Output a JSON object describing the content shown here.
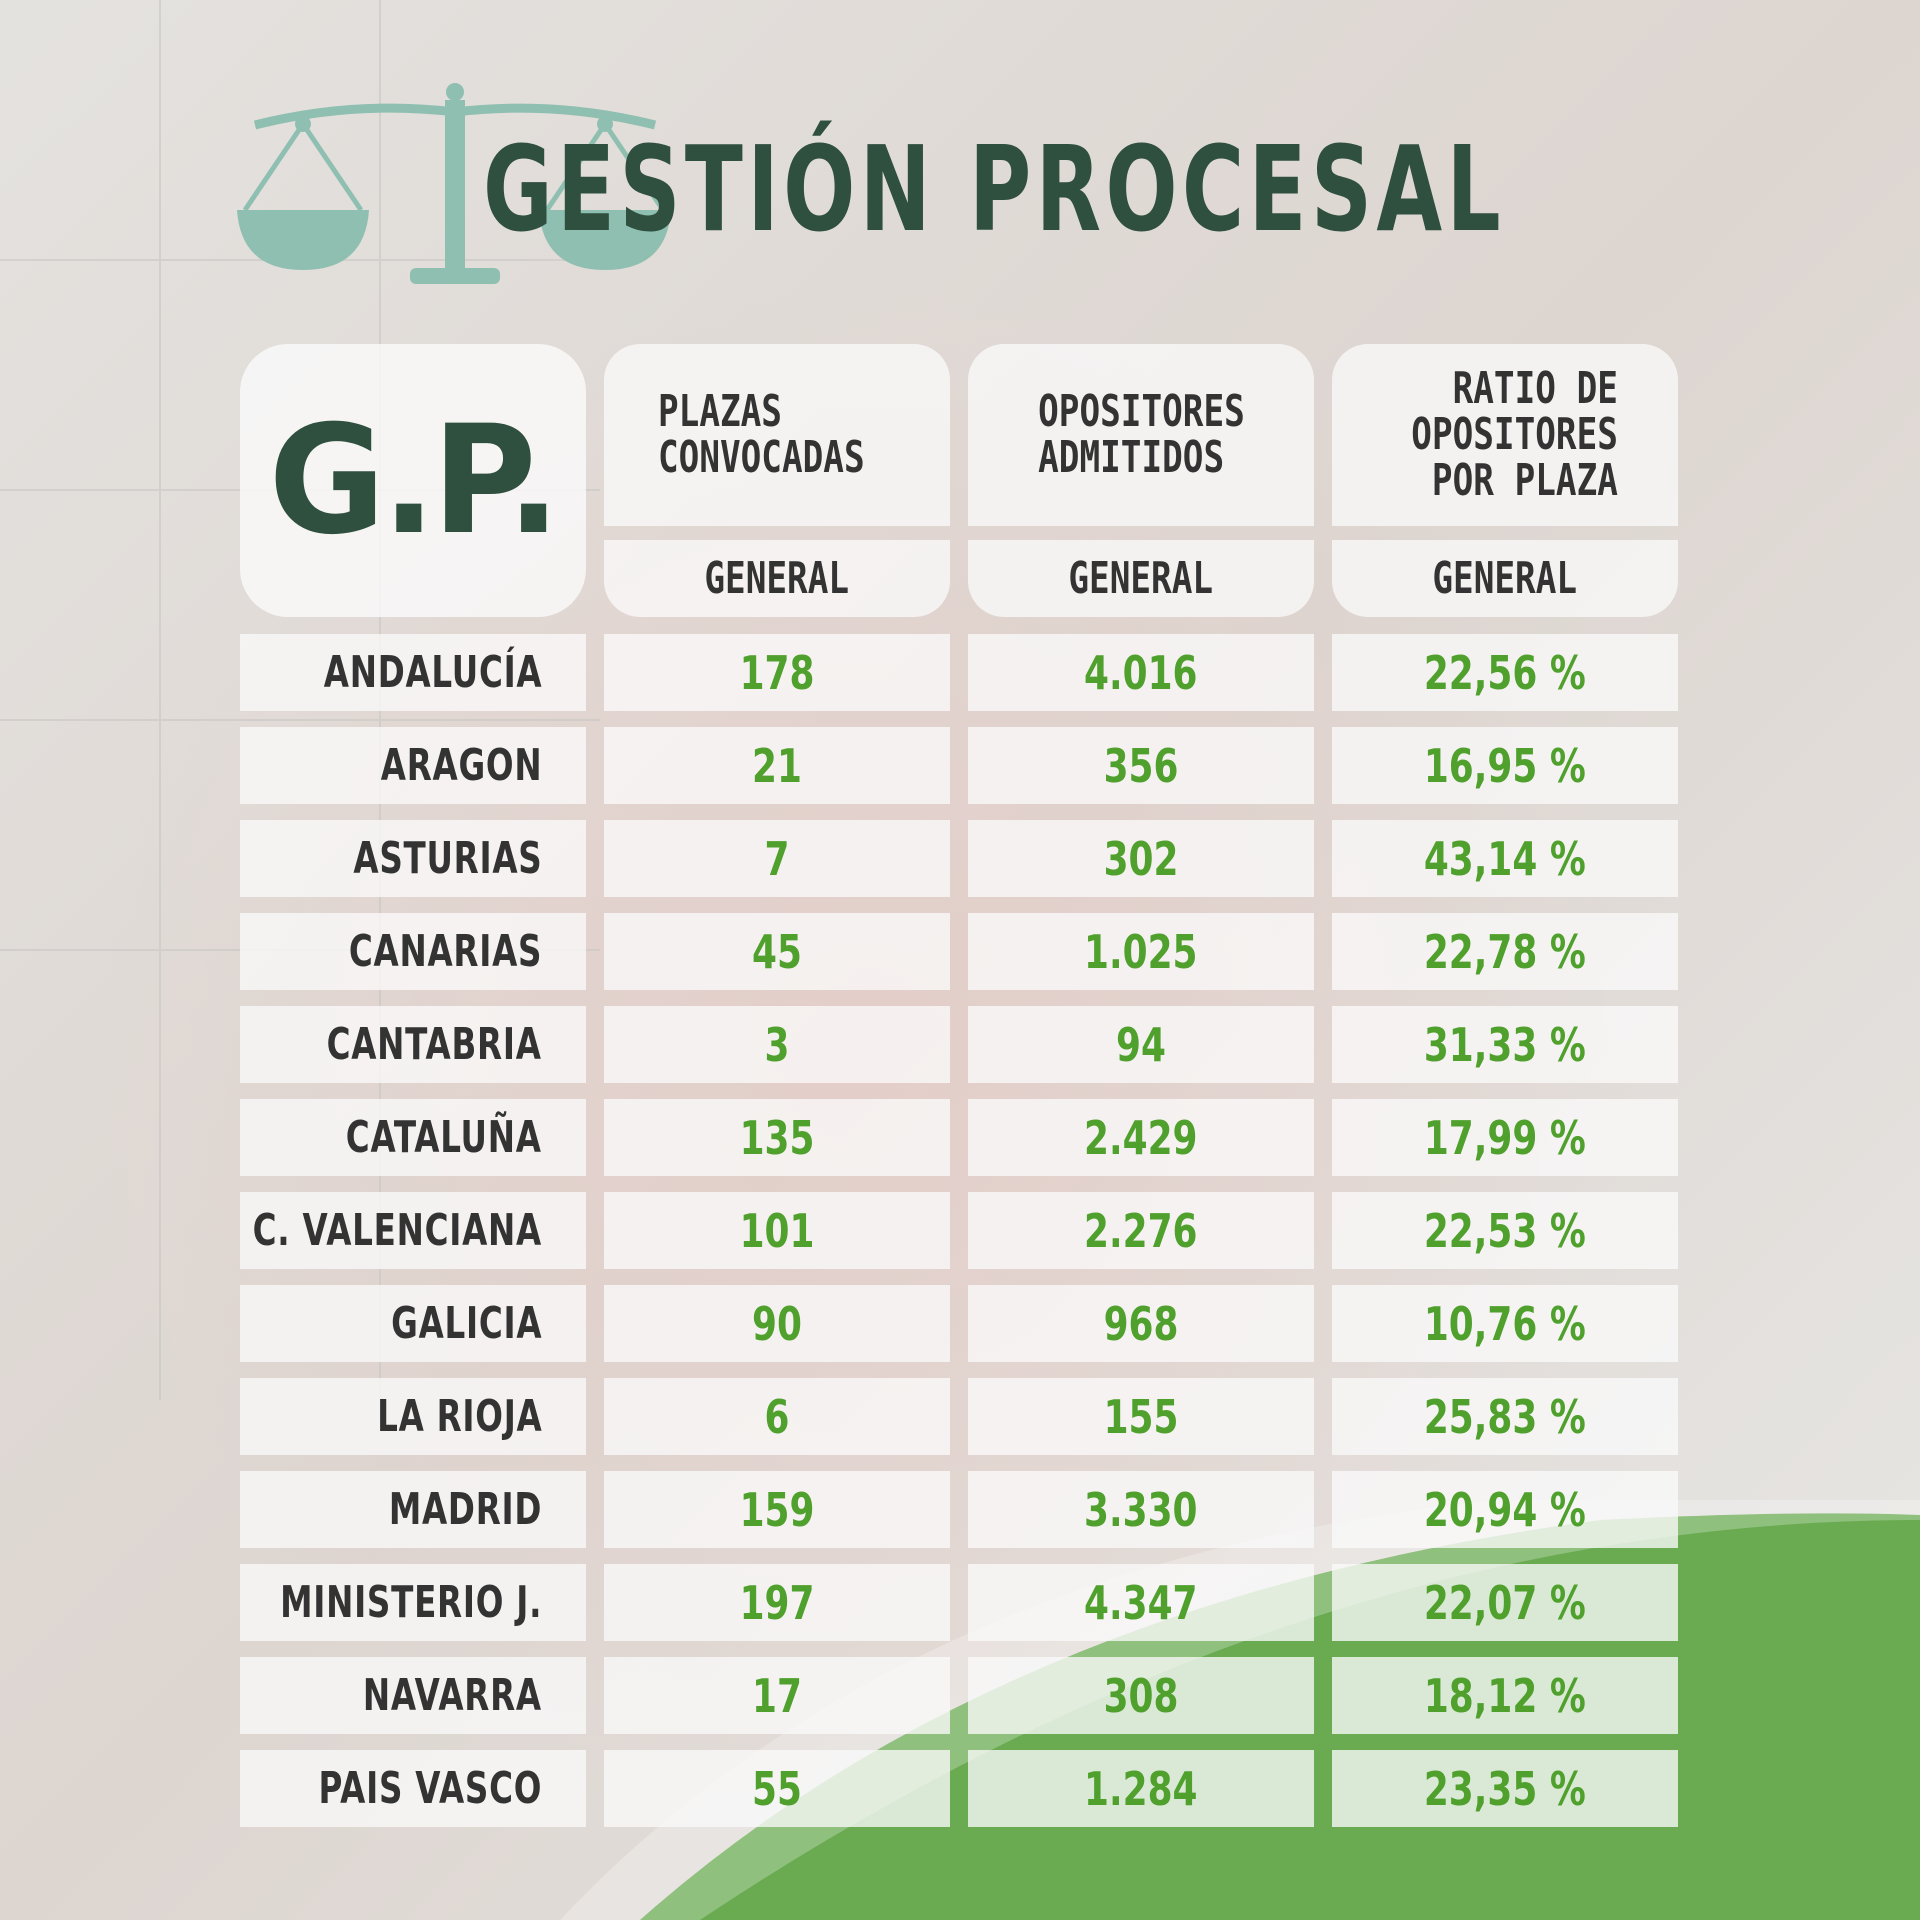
{
  "title": "GESTIÓN PROCESAL",
  "logo_text": "G.P.",
  "columns": [
    {
      "header": "PLAZAS\nCONVOCADAS",
      "sub": "GENERAL"
    },
    {
      "header": "OPOSITORES\nADMITIDOS",
      "sub": "GENERAL"
    },
    {
      "header": "RATIO DE\nOPOSITORES\nPOR PLAZA",
      "sub": "GENERAL"
    }
  ],
  "rows": [
    {
      "region": "ANDALUCÍA",
      "plazas": "178",
      "opositores": "4.016",
      "ratio": "22,56 %"
    },
    {
      "region": "ARAGON",
      "plazas": "21",
      "opositores": "356",
      "ratio": "16,95 %"
    },
    {
      "region": "ASTURIAS",
      "plazas": "7",
      "opositores": "302",
      "ratio": "43,14 %"
    },
    {
      "region": "CANARIAS",
      "plazas": "45",
      "opositores": "1.025",
      "ratio": "22,78 %"
    },
    {
      "region": "CANTABRIA",
      "plazas": "3",
      "opositores": "94",
      "ratio": "31,33 %"
    },
    {
      "region": "CATALUÑA",
      "plazas": "135",
      "opositores": "2.429",
      "ratio": "17,99 %"
    },
    {
      "region": "C. VALENCIANA",
      "plazas": "101",
      "opositores": "2.276",
      "ratio": "22,53 %"
    },
    {
      "region": "GALICIA",
      "plazas": "90",
      "opositores": "968",
      "ratio": "10,76 %"
    },
    {
      "region": "LA RIOJA",
      "plazas": "6",
      "opositores": "155",
      "ratio": "25,83 %"
    },
    {
      "region": "MADRID",
      "plazas": "159",
      "opositores": "3.330",
      "ratio": "20,94 %"
    },
    {
      "region": "MINISTERIO J.",
      "plazas": "197",
      "opositores": "4.347",
      "ratio": "22,07 %"
    },
    {
      "region": "NAVARRA",
      "plazas": "17",
      "opositores": "308",
      "ratio": "18,12 %"
    },
    {
      "region": "PAIS VASCO",
      "plazas": "55",
      "opositores": "1.284",
      "ratio": "23,35 %"
    }
  ],
  "colors": {
    "title": "#2f4f3f",
    "value": "#4fa02c",
    "label": "#333333",
    "accent_green": "#6aab52",
    "icon": "#8fbfb1"
  },
  "icon": "scales-of-justice-icon"
}
